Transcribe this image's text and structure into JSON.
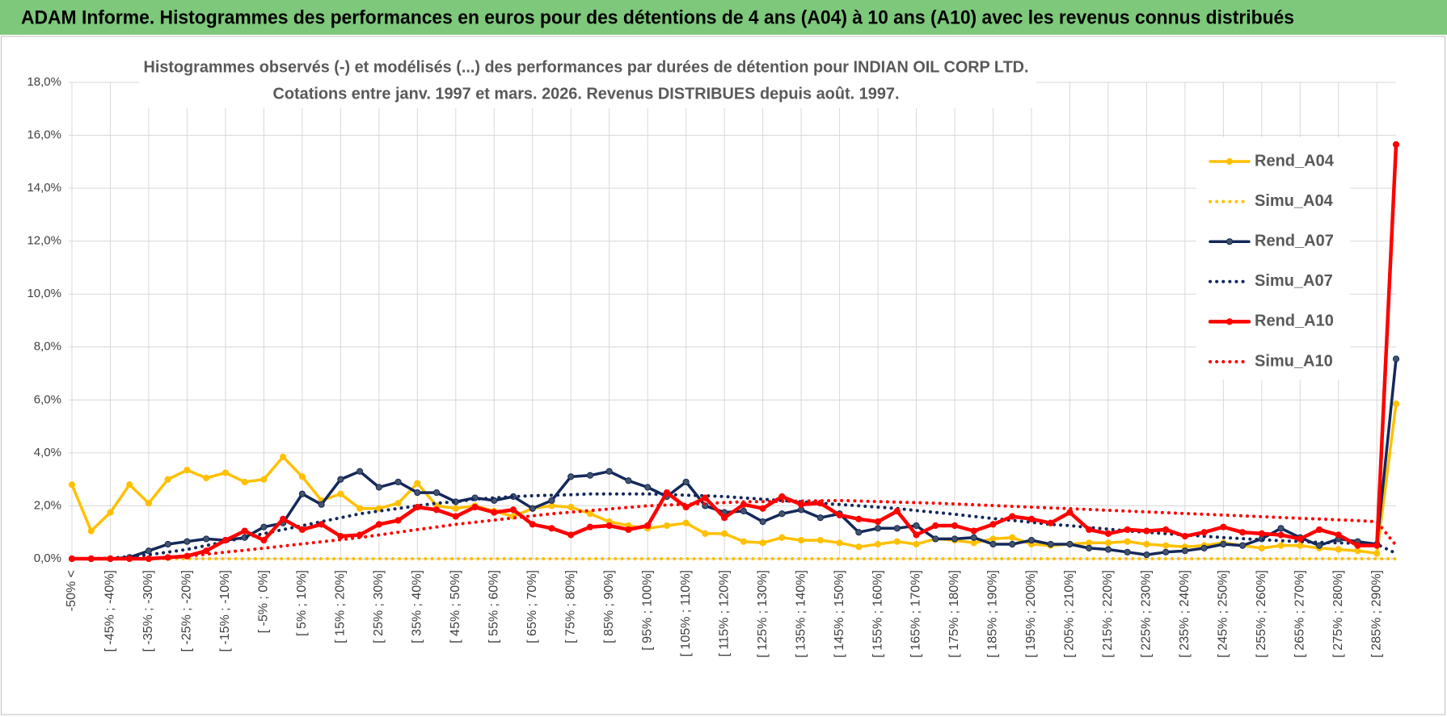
{
  "header": {
    "title": "ADAM Informe. Histogrammes des performances en euros pour des détentions de 4 ans (A04) à 10 ans (A10) avec les revenus connus distribués"
  },
  "chart_data": {
    "type": "line",
    "title": "Histogrammes observés (-) et modélisés (...) des performances par durées de détention pour INDIAN  OIL CORP LTD.",
    "subtitle": "Cotations entre janv. 1997 et mars. 2026.  Revenus DISTRIBUES depuis août. 1997.",
    "categories": [
      "-50% <",
      null,
      "[ -45% ; -40%]",
      null,
      "[ -35% ; -30%]",
      null,
      "[ -25% ; -20%]",
      null,
      "[ -15% ; -10%]",
      null,
      "[ -5% ; 0%]",
      null,
      "[ 5% ; 10%]",
      null,
      "[ 15% ; 20%]",
      null,
      "[ 25% ; 30%]",
      null,
      "[ 35% ; 40%]",
      null,
      "[ 45% ; 50%]",
      null,
      "[ 55% ; 60%]",
      null,
      "[ 65% ; 70%]",
      null,
      "[ 75% ; 80%]",
      null,
      "[ 85% ; 90%]",
      null,
      "[ 95% ; 100%]",
      null,
      "[ 105% ; 110%]",
      null,
      "[ 115% ; 120%]",
      null,
      "[ 125% ; 130%]",
      null,
      "[ 135% ; 140%]",
      null,
      "[ 145% ; 150%]",
      null,
      "[ 155% ; 160%]",
      null,
      "[ 165% ; 170%]",
      null,
      "[ 175% ; 180%]",
      null,
      "[ 185% ; 190%]",
      null,
      "[ 195% ; 200%]",
      null,
      "[ 205% ; 210%]",
      null,
      "[ 215% ; 220%]",
      null,
      "[ 225% ; 230%]",
      null,
      "[ 235% ; 240%]",
      null,
      "[ 245% ; 250%]",
      null,
      "[ 255% ; 260%]",
      null,
      "[ 265% ; 270%]",
      null,
      "[ 275% ; 280%]",
      null,
      "[ 285% ; 290%]",
      null
    ],
    "series": [
      {
        "name": "Rend_A04",
        "color": "#ffc000",
        "style": "solid",
        "values": [
          2.8,
          1.05,
          1.75,
          2.8,
          2.1,
          3.0,
          3.35,
          3.05,
          3.25,
          2.9,
          3.0,
          3.85,
          3.1,
          2.2,
          2.45,
          1.9,
          1.9,
          2.1,
          2.85,
          2.0,
          1.9,
          2.0,
          1.8,
          1.6,
          1.9,
          2.0,
          1.95,
          1.7,
          1.4,
          1.25,
          1.15,
          1.25,
          1.35,
          0.95,
          0.95,
          0.65,
          0.6,
          0.8,
          0.7,
          0.7,
          0.6,
          0.45,
          0.55,
          0.65,
          0.55,
          0.75,
          0.7,
          0.6,
          0.75,
          0.8,
          0.55,
          0.5,
          0.55,
          0.6,
          0.6,
          0.65,
          0.55,
          0.5,
          0.45,
          0.5,
          0.6,
          0.5,
          0.4,
          0.5,
          0.5,
          0.4,
          0.35,
          0.3,
          0.2,
          5.85
        ]
      },
      {
        "name": "Simu_A04",
        "color": "#ffc000",
        "style": "dotted",
        "values": [
          0,
          0,
          0,
          0,
          0,
          0,
          0,
          0,
          0,
          0,
          0,
          0,
          0,
          0,
          0,
          0,
          0,
          0,
          0,
          0,
          0,
          0,
          0,
          0,
          0,
          0,
          0,
          0,
          0,
          0,
          0,
          0,
          0,
          0,
          0,
          0,
          0,
          0,
          0,
          0,
          0,
          0,
          0,
          0,
          0,
          0,
          0,
          0,
          0,
          0,
          0,
          0,
          0,
          0,
          0,
          0,
          0,
          0,
          0,
          0,
          0,
          0,
          0,
          0,
          0,
          0,
          0,
          0,
          0,
          0
        ]
      },
      {
        "name": "Rend_A07",
        "color": "#14285a",
        "style": "solid",
        "values": [
          0,
          0,
          0,
          0.05,
          0.3,
          0.55,
          0.65,
          0.75,
          0.7,
          0.8,
          1.2,
          1.35,
          2.45,
          2.05,
          3.0,
          3.3,
          2.7,
          2.9,
          2.5,
          2.5,
          2.15,
          2.3,
          2.2,
          2.35,
          1.9,
          2.2,
          3.1,
          3.15,
          3.3,
          2.95,
          2.7,
          2.35,
          2.9,
          2.0,
          1.75,
          1.8,
          1.4,
          1.7,
          1.85,
          1.55,
          1.7,
          1.0,
          1.15,
          1.15,
          1.25,
          0.75,
          0.75,
          0.8,
          0.55,
          0.55,
          0.7,
          0.55,
          0.55,
          0.4,
          0.35,
          0.25,
          0.15,
          0.25,
          0.3,
          0.4,
          0.55,
          0.5,
          0.75,
          1.15,
          0.8,
          0.5,
          0.75,
          0.65,
          0.55,
          7.55
        ]
      },
      {
        "name": "Simu_A07",
        "color": "#14285a",
        "style": "dotted",
        "values": [
          0,
          0,
          0.02,
          0.08,
          0.15,
          0.25,
          0.35,
          0.5,
          0.65,
          0.8,
          0.95,
          1.1,
          1.25,
          1.4,
          1.55,
          1.7,
          1.8,
          1.9,
          2.0,
          2.1,
          2.15,
          2.25,
          2.3,
          2.35,
          2.38,
          2.4,
          2.42,
          2.45,
          2.45,
          2.45,
          2.45,
          2.43,
          2.4,
          2.38,
          2.35,
          2.3,
          2.25,
          2.2,
          2.15,
          2.1,
          2.05,
          2.0,
          1.95,
          1.9,
          1.82,
          1.75,
          1.68,
          1.6,
          1.52,
          1.45,
          1.38,
          1.3,
          1.25,
          1.18,
          1.12,
          1.05,
          1.0,
          0.95,
          0.9,
          0.85,
          0.8,
          0.76,
          0.72,
          0.68,
          0.65,
          0.62,
          0.6,
          0.58,
          0.55,
          0.2
        ]
      },
      {
        "name": "Rend_A10",
        "color": "#ff0000",
        "style": "solid",
        "values": [
          0,
          0,
          0,
          0,
          0,
          0.05,
          0.1,
          0.3,
          0.7,
          1.05,
          0.7,
          1.5,
          1.1,
          1.3,
          0.85,
          0.9,
          1.3,
          1.45,
          1.95,
          1.85,
          1.6,
          1.95,
          1.75,
          1.85,
          1.3,
          1.15,
          0.9,
          1.2,
          1.25,
          1.1,
          1.25,
          2.5,
          1.95,
          2.3,
          1.55,
          2.05,
          1.9,
          2.35,
          2.05,
          2.1,
          1.65,
          1.5,
          1.4,
          1.8,
          0.9,
          1.25,
          1.25,
          1.05,
          1.3,
          1.6,
          1.5,
          1.35,
          1.75,
          1.1,
          0.95,
          1.1,
          1.05,
          1.1,
          0.85,
          1.0,
          1.2,
          1.0,
          0.95,
          0.9,
          0.75,
          1.1,
          0.9,
          0.5,
          0.5,
          15.65
        ]
      },
      {
        "name": "Simu_A10",
        "color": "#ff0000",
        "style": "dotted",
        "values": [
          0,
          0,
          0,
          0,
          0.02,
          0.05,
          0.1,
          0.17,
          0.25,
          0.32,
          0.4,
          0.48,
          0.56,
          0.64,
          0.72,
          0.8,
          0.9,
          1.0,
          1.1,
          1.2,
          1.3,
          1.38,
          1.46,
          1.54,
          1.62,
          1.7,
          1.76,
          1.82,
          1.88,
          1.94,
          2.0,
          2.03,
          2.06,
          2.09,
          2.12,
          2.15,
          2.16,
          2.17,
          2.18,
          2.19,
          2.2,
          2.18,
          2.16,
          2.14,
          2.12,
          2.1,
          2.07,
          2.04,
          2.01,
          1.98,
          1.95,
          1.92,
          1.89,
          1.86,
          1.83,
          1.8,
          1.77,
          1.74,
          1.71,
          1.68,
          1.65,
          1.62,
          1.59,
          1.56,
          1.53,
          1.5,
          1.47,
          1.44,
          1.4,
          0.5
        ]
      }
    ],
    "ylim": [
      0,
      18
    ],
    "yticks": [
      {
        "value": 0,
        "label": "0,0%"
      },
      {
        "value": 2,
        "label": "2,0%"
      },
      {
        "value": 4,
        "label": "4,0%"
      },
      {
        "value": 6,
        "label": "6,0%"
      },
      {
        "value": 8,
        "label": "8,0%"
      },
      {
        "value": 10,
        "label": "10,0%"
      },
      {
        "value": 12,
        "label": "12,0%"
      },
      {
        "value": 14,
        "label": "14,0%"
      },
      {
        "value": 16,
        "label": "16,0%"
      },
      {
        "value": 18,
        "label": "18,0%"
      }
    ],
    "grid": true,
    "legend": "right"
  }
}
